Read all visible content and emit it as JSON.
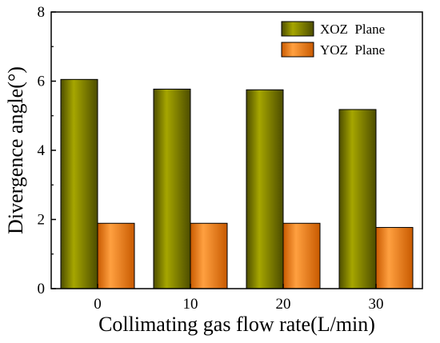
{
  "chart_data": {
    "type": "bar",
    "categories": [
      "0",
      "10",
      "20",
      "30"
    ],
    "series": [
      {
        "name": "XOZ  Plane",
        "values": [
          6.05,
          5.77,
          5.75,
          5.18
        ],
        "color": "#808000"
      },
      {
        "name": "YOZ  Plane",
        "values": [
          1.89,
          1.89,
          1.89,
          1.77
        ],
        "color": "#ff8000"
      }
    ],
    "xlabel": "Collimating gas flow rate(L/min)",
    "ylabel": "Divergence angle(°)",
    "ylim": [
      0,
      8
    ],
    "yticks": [
      0,
      2,
      4,
      6,
      8
    ],
    "grid": false,
    "legend_position": "top-right"
  }
}
